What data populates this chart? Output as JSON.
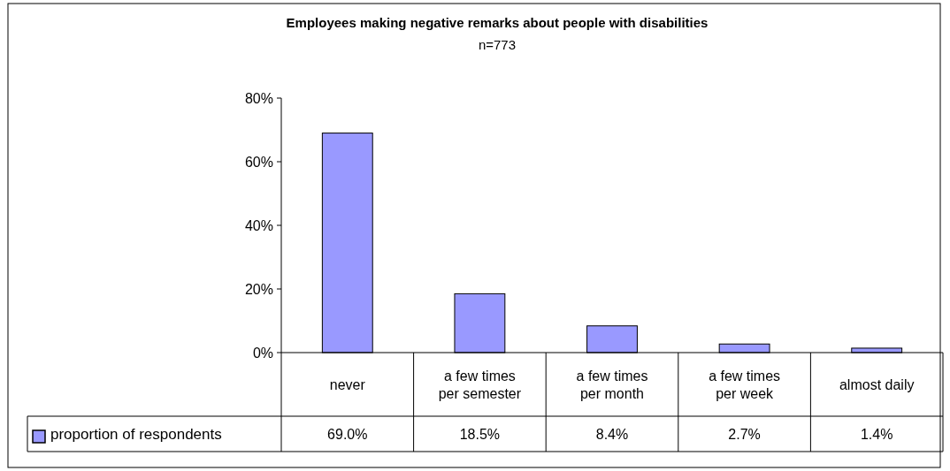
{
  "chart_data": {
    "type": "bar",
    "title": "Employees making negative remarks about people with disabilities",
    "subtitle": "n=773",
    "categories": [
      "never",
      "a few times per semester",
      "a few times per month",
      "a few times per week",
      "almost daily"
    ],
    "series": [
      {
        "name": "proportion of respondents",
        "color": "#9999ff",
        "values": [
          69.0,
          18.5,
          8.4,
          2.7,
          1.4
        ],
        "value_labels": [
          "69.0%",
          "18.5%",
          "8.4%",
          "2.7%",
          "1.4%"
        ]
      }
    ],
    "ylim": [
      0,
      80
    ],
    "yticks": [
      {
        "value": 0,
        "label": "0%"
      },
      {
        "value": 20,
        "label": "20%"
      },
      {
        "value": 40,
        "label": "40%"
      },
      {
        "value": 60,
        "label": "60%"
      },
      {
        "value": 80,
        "label": "80%"
      }
    ],
    "grid": false,
    "legend": "bottom left"
  }
}
